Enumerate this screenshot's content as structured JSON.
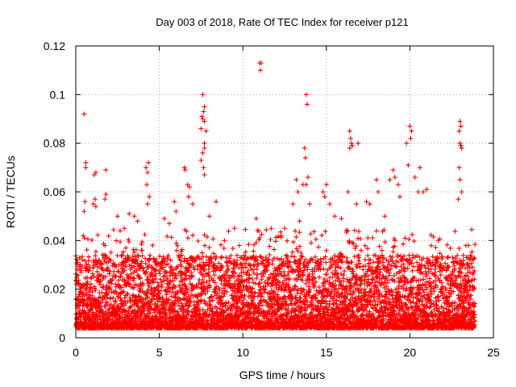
{
  "chart_data": {
    "type": "scatter",
    "title": "Day 003 of 2018, Rate Of TEC Index for receiver p121",
    "xlabel": "GPS time / hours",
    "ylabel": "ROTI / TECUs",
    "xlim": [
      0,
      25
    ],
    "ylim": [
      0,
      0.12
    ],
    "xticks": [
      0,
      5,
      10,
      15,
      20,
      25
    ],
    "yticks": [
      0,
      0.02,
      0.04,
      0.06,
      0.08,
      0.1,
      0.12
    ],
    "xtick_labels": [
      "0",
      "5",
      "10",
      "15",
      "20",
      "25"
    ],
    "ytick_labels": [
      "0",
      "0.02",
      "0.04",
      "0.06",
      "0.08",
      "0.1",
      "0.12"
    ],
    "grid": true,
    "marker": "+",
    "color": "#ff0000",
    "series": [
      {
        "name": "ROTI",
        "points": [
          [
            0.5,
            0.092
          ],
          [
            0.6,
            0.072
          ],
          [
            0.6,
            0.07
          ],
          [
            0.55,
            0.056
          ],
          [
            0.5,
            0.052
          ],
          [
            1.2,
            0.068
          ],
          [
            1.1,
            0.067
          ],
          [
            1.05,
            0.055
          ],
          [
            1.15,
            0.057
          ],
          [
            1.2,
            0.054
          ],
          [
            1.8,
            0.069
          ],
          [
            1.8,
            0.059
          ],
          [
            1.75,
            0.057
          ],
          [
            2.5,
            0.05
          ],
          [
            2.9,
            0.045
          ],
          [
            3.2,
            0.051
          ],
          [
            3.5,
            0.05
          ],
          [
            3.7,
            0.048
          ],
          [
            4.2,
            0.07
          ],
          [
            4.3,
            0.068
          ],
          [
            4.35,
            0.072
          ],
          [
            4.25,
            0.063
          ],
          [
            4.4,
            0.058
          ],
          [
            4.3,
            0.055
          ],
          [
            5.3,
            0.049
          ],
          [
            5.6,
            0.047
          ],
          [
            5.9,
            0.056
          ],
          [
            6.0,
            0.052
          ],
          [
            6.5,
            0.07
          ],
          [
            6.55,
            0.069
          ],
          [
            6.7,
            0.063
          ],
          [
            6.8,
            0.062
          ],
          [
            6.75,
            0.058
          ],
          [
            7.0,
            0.055
          ],
          [
            7.6,
            0.1
          ],
          [
            7.7,
            0.095
          ],
          [
            7.65,
            0.093
          ],
          [
            7.55,
            0.091
          ],
          [
            7.6,
            0.09
          ],
          [
            7.7,
            0.089
          ],
          [
            7.5,
            0.086
          ],
          [
            7.8,
            0.085
          ],
          [
            7.7,
            0.08
          ],
          [
            7.7,
            0.078
          ],
          [
            7.6,
            0.076
          ],
          [
            7.5,
            0.073
          ],
          [
            7.65,
            0.07
          ],
          [
            7.7,
            0.067
          ],
          [
            8.0,
            0.05
          ],
          [
            8.4,
            0.056
          ],
          [
            8.9,
            0.04
          ],
          [
            9.5,
            0.045
          ],
          [
            10.8,
            0.049
          ],
          [
            11.0,
            0.113
          ],
          [
            11.1,
            0.113
          ],
          [
            11.05,
            0.11
          ],
          [
            11.7,
            0.045
          ],
          [
            12.3,
            0.042
          ],
          [
            12.5,
            0.045
          ],
          [
            13.0,
            0.055
          ],
          [
            13.2,
            0.065
          ],
          [
            13.3,
            0.06
          ],
          [
            13.4,
            0.048
          ],
          [
            13.8,
            0.1
          ],
          [
            13.85,
            0.096
          ],
          [
            13.7,
            0.078
          ],
          [
            13.75,
            0.074
          ],
          [
            13.9,
            0.066
          ],
          [
            13.6,
            0.063
          ],
          [
            13.8,
            0.063
          ],
          [
            14.0,
            0.055
          ],
          [
            14.8,
            0.06
          ],
          [
            15.0,
            0.063
          ],
          [
            14.9,
            0.058
          ],
          [
            15.2,
            0.055
          ],
          [
            15.5,
            0.05
          ],
          [
            15.9,
            0.049
          ],
          [
            16.4,
            0.085
          ],
          [
            16.45,
            0.082
          ],
          [
            16.5,
            0.08
          ],
          [
            16.55,
            0.079
          ],
          [
            16.4,
            0.078
          ],
          [
            16.9,
            0.08
          ],
          [
            16.3,
            0.06
          ],
          [
            16.8,
            0.055
          ],
          [
            17.4,
            0.056
          ],
          [
            17.6,
            0.055
          ],
          [
            18.0,
            0.065
          ],
          [
            18.1,
            0.06
          ],
          [
            18.5,
            0.05
          ],
          [
            18.8,
            0.065
          ],
          [
            19.0,
            0.069
          ],
          [
            19.1,
            0.066
          ],
          [
            19.3,
            0.063
          ],
          [
            19.4,
            0.058
          ],
          [
            19.8,
            0.08
          ],
          [
            19.9,
            0.071
          ],
          [
            20.0,
            0.087
          ],
          [
            20.1,
            0.085
          ],
          [
            20.05,
            0.082
          ],
          [
            20.3,
            0.066
          ],
          [
            20.5,
            0.06
          ],
          [
            20.8,
            0.06
          ],
          [
            21.0,
            0.061
          ],
          [
            20.6,
            0.07
          ],
          [
            21.7,
            0.04
          ],
          [
            23.0,
            0.089
          ],
          [
            23.05,
            0.087
          ],
          [
            22.95,
            0.085
          ],
          [
            23.0,
            0.08
          ],
          [
            23.05,
            0.079
          ],
          [
            23.1,
            0.078
          ],
          [
            22.95,
            0.07
          ],
          [
            23.0,
            0.065
          ],
          [
            23.1,
            0.06
          ],
          [
            22.9,
            0.057
          ],
          [
            23.5,
            0.038
          ]
        ]
      }
    ]
  }
}
